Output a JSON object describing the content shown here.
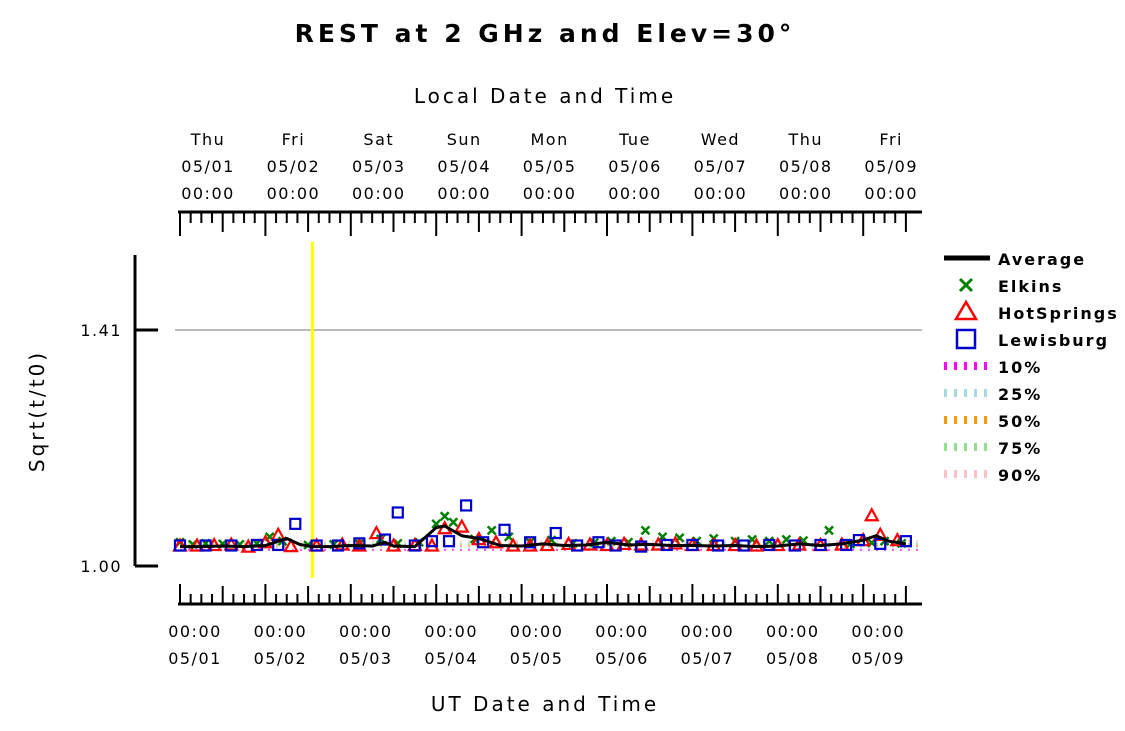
{
  "chart_data": {
    "type": "scatter",
    "title": "REST at 2 GHz and Elev=30°",
    "xlabel_top": "Local Date and Time",
    "xlabel_bottom": "UT Date and Time",
    "ylabel": "Sqrt(t/t0)",
    "y_ticks": [
      "1.00",
      "1.41"
    ],
    "y_tick_values": [
      1.0,
      1.41
    ],
    "ylim": [
      0.995,
      1.54
    ],
    "xlim": [
      0.0,
      8.55
    ],
    "x_units": "days since 05/01 00:00 UT",
    "reference_line": {
      "value": 1.41,
      "color": "#bbbbbb"
    },
    "marker_line": {
      "x": 1.55,
      "color": "#ffff00"
    },
    "top_ticks": [
      {
        "day": "Thu",
        "date": "05/01",
        "time": "00:00"
      },
      {
        "day": "Fri",
        "date": "05/02",
        "time": "00:00"
      },
      {
        "day": "Sat",
        "date": "05/03",
        "time": "00:00"
      },
      {
        "day": "Sun",
        "date": "05/04",
        "time": "00:00"
      },
      {
        "day": "Mon",
        "date": "05/05",
        "time": "00:00"
      },
      {
        "day": "Tue",
        "date": "05/06",
        "time": "00:00"
      },
      {
        "day": "Wed",
        "date": "05/07",
        "time": "00:00"
      },
      {
        "day": "Thu",
        "date": "05/08",
        "time": "00:00"
      },
      {
        "day": "Fri",
        "date": "05/09",
        "time": "00:00"
      }
    ],
    "bottom_ticks": [
      {
        "time": "00:00",
        "date": "05/01"
      },
      {
        "time": "00:00",
        "date": "05/02"
      },
      {
        "time": "00:00",
        "date": "05/03"
      },
      {
        "time": "00:00",
        "date": "05/04"
      },
      {
        "time": "00:00",
        "date": "05/05"
      },
      {
        "time": "00:00",
        "date": "05/06"
      },
      {
        "time": "00:00",
        "date": "05/07"
      },
      {
        "time": "00:00",
        "date": "05/08"
      },
      {
        "time": "00:00",
        "date": "05/09"
      }
    ],
    "legend": [
      {
        "label": "Average",
        "marker": "thick-line",
        "color": "#000000"
      },
      {
        "label": "Elkins",
        "marker": "x",
        "color": "#008000"
      },
      {
        "label": "HotSprings",
        "marker": "triangle",
        "color": "#ff0000"
      },
      {
        "label": "Lewisburg",
        "marker": "square",
        "color": "#0000cc"
      },
      {
        "label": "10%",
        "marker": "dotted",
        "color": "#ff00ff"
      },
      {
        "label": "25%",
        "marker": "dotted",
        "color": "#a8d8e0"
      },
      {
        "label": "50%",
        "marker": "dotted",
        "color": "#ff9900"
      },
      {
        "label": "75%",
        "marker": "dotted",
        "color": "#90e090"
      },
      {
        "label": "90%",
        "marker": "dotted",
        "color": "#ffc0c8"
      }
    ],
    "series": [
      {
        "name": "Average",
        "x": [
          0.0,
          0.25,
          0.5,
          0.75,
          1.0,
          1.25,
          1.4,
          1.55,
          1.75,
          2.0,
          2.25,
          2.4,
          2.5,
          2.75,
          3.0,
          3.1,
          3.3,
          3.5,
          3.75,
          4.0,
          4.25,
          4.5,
          4.75,
          5.0,
          5.25,
          5.5,
          5.75,
          6.0,
          6.25,
          6.5,
          6.75,
          7.0,
          7.25,
          7.5,
          7.75,
          8.0,
          8.15,
          8.3,
          8.5
        ],
        "y": [
          1.01,
          1.01,
          1.011,
          1.01,
          1.012,
          1.025,
          1.014,
          1.01,
          1.01,
          1.012,
          1.011,
          1.018,
          1.011,
          1.01,
          1.045,
          1.048,
          1.03,
          1.025,
          1.012,
          1.011,
          1.015,
          1.012,
          1.013,
          1.018,
          1.013,
          1.014,
          1.012,
          1.012,
          1.011,
          1.012,
          1.01,
          1.011,
          1.015,
          1.012,
          1.015,
          1.022,
          1.03,
          1.02,
          1.015
        ]
      },
      {
        "name": "Elkins",
        "x": [
          0.0,
          0.15,
          0.3,
          0.5,
          0.7,
          0.9,
          1.05,
          1.2,
          1.5,
          1.8,
          2.1,
          2.35,
          2.55,
          2.8,
          3.0,
          3.1,
          3.2,
          3.45,
          3.65,
          3.85,
          4.1,
          4.35,
          4.6,
          4.85,
          5.05,
          5.25,
          5.45,
          5.65,
          5.85,
          6.05,
          6.25,
          6.5,
          6.7,
          6.9,
          7.1,
          7.3,
          7.6,
          7.85,
          8.1,
          8.25,
          8.45
        ],
        "y": [
          1.018,
          1.014,
          1.016,
          1.015,
          1.014,
          1.016,
          1.028,
          1.02,
          1.013,
          1.014,
          1.015,
          1.024,
          1.016,
          1.018,
          1.052,
          1.066,
          1.055,
          1.024,
          1.04,
          1.028,
          1.018,
          1.022,
          1.016,
          1.017,
          1.02,
          1.018,
          1.04,
          1.028,
          1.026,
          1.02,
          1.025,
          1.02,
          1.023,
          1.02,
          1.023,
          1.021,
          1.04,
          1.015,
          1.017,
          1.02,
          1.016
        ]
      },
      {
        "name": "HotSprings",
        "x": [
          0.0,
          0.2,
          0.4,
          0.6,
          0.8,
          1.0,
          1.15,
          1.3,
          1.6,
          1.9,
          2.1,
          2.3,
          2.5,
          2.75,
          2.95,
          3.1,
          3.3,
          3.5,
          3.7,
          3.9,
          4.1,
          4.3,
          4.55,
          4.8,
          5.0,
          5.2,
          5.4,
          5.6,
          5.8,
          6.0,
          6.25,
          6.5,
          6.75,
          7.0,
          7.25,
          7.5,
          7.75,
          8.0,
          8.1,
          8.2,
          8.4
        ],
        "y": [
          1.01,
          1.01,
          1.011,
          1.012,
          1.008,
          1.016,
          1.03,
          1.009,
          1.01,
          1.012,
          1.01,
          1.033,
          1.01,
          1.011,
          1.01,
          1.042,
          1.045,
          1.022,
          1.016,
          1.01,
          1.01,
          1.011,
          1.013,
          1.012,
          1.011,
          1.013,
          1.012,
          1.012,
          1.014,
          1.011,
          1.011,
          1.011,
          1.01,
          1.011,
          1.012,
          1.011,
          1.012,
          1.02,
          1.066,
          1.03,
          1.02
        ]
      },
      {
        "name": "Lewisburg",
        "x": [
          0.0,
          0.3,
          0.6,
          0.9,
          1.15,
          1.35,
          1.6,
          1.85,
          2.1,
          2.4,
          2.55,
          2.75,
          2.95,
          3.15,
          3.35,
          3.55,
          3.8,
          4.1,
          4.4,
          4.65,
          4.9,
          5.1,
          5.4,
          5.7,
          6.0,
          6.3,
          6.6,
          6.9,
          7.2,
          7.5,
          7.8,
          7.95,
          8.2,
          8.5
        ],
        "y": [
          1.012,
          1.012,
          1.012,
          1.013,
          1.013,
          1.052,
          1.012,
          1.012,
          1.016,
          1.023,
          1.073,
          1.012,
          1.02,
          1.02,
          1.086,
          1.018,
          1.041,
          1.018,
          1.035,
          1.012,
          1.018,
          1.012,
          1.01,
          1.013,
          1.013,
          1.012,
          1.012,
          1.013,
          1.012,
          1.013,
          1.013,
          1.022,
          1.015,
          1.02
        ]
      }
    ]
  }
}
